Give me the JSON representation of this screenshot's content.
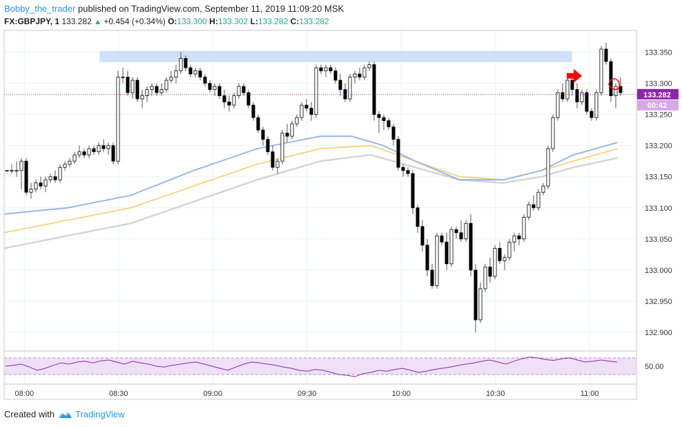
{
  "header": {
    "author": "Bobby_the_trader",
    "published_text": "published on TradingView.com, September 11, 2019 11:09:20 MSK",
    "symbol": "FX:GBPJPY, 1",
    "last": "133.282",
    "change": "+0.454 (+0.34%)",
    "open_label": "O:",
    "open": "133.300",
    "high_label": "H:",
    "high": "133.302",
    "low_label": "L:",
    "low": "133.282",
    "close_label": "C:",
    "close": "133.282"
  },
  "footer": {
    "created_with": "Created with",
    "brand": "TradingView"
  },
  "colors": {
    "candle": "#000000",
    "wick": "#555555",
    "resistance_zone": "#cfe0f7",
    "ma_fast": "#8fb3e6",
    "ma_mid": "#f2d47a",
    "ma_slow": "#d4d4d4",
    "price_line": "#8e24aa",
    "rsi": "#8e24aa",
    "rsi_band": "#efe0f7",
    "annotation": "#ff0000",
    "grid": "#eef0f2"
  },
  "chart_data": {
    "type": "candlestick",
    "price_axis": {
      "ylim": [
        132.87,
        133.385
      ],
      "ticks": [
        "133.350",
        "133.300",
        "133.250",
        "133.200",
        "133.150",
        "133.100",
        "133.050",
        "133.000",
        "132.950",
        "132.900"
      ]
    },
    "time_axis": {
      "ticks": [
        "08:00",
        "08:30",
        "09:00",
        "09:30",
        "10:00",
        "10:30",
        "11:00"
      ]
    },
    "current_price_label": "133.282",
    "countdown_label": "00:42",
    "resistance_zone": {
      "low": 133.334,
      "high": 133.352
    },
    "candles": [
      [
        133.16,
        133.16,
        133.16,
        133.16
      ],
      [
        133.16,
        133.17,
        133.155,
        133.16
      ],
      [
        133.16,
        133.175,
        133.15,
        133.16
      ],
      [
        133.16,
        133.18,
        133.13,
        133.175
      ],
      [
        133.175,
        133.18,
        133.12,
        133.125
      ],
      [
        133.125,
        133.14,
        133.115,
        133.13
      ],
      [
        133.13,
        133.145,
        133.125,
        133.14
      ],
      [
        133.14,
        133.15,
        133.13,
        133.135
      ],
      [
        133.135,
        133.15,
        133.125,
        133.145
      ],
      [
        133.145,
        133.155,
        133.14,
        133.15
      ],
      [
        133.15,
        133.16,
        133.14,
        133.145
      ],
      [
        133.145,
        133.17,
        133.14,
        133.165
      ],
      [
        133.165,
        133.175,
        133.16,
        133.17
      ],
      [
        133.17,
        133.18,
        133.165,
        133.175
      ],
      [
        133.175,
        133.19,
        133.17,
        133.185
      ],
      [
        133.185,
        133.2,
        133.18,
        133.19
      ],
      [
        133.19,
        133.195,
        133.18,
        133.185
      ],
      [
        133.185,
        133.2,
        133.18,
        133.195
      ],
      [
        133.195,
        133.2,
        133.185,
        133.19
      ],
      [
        133.19,
        133.205,
        133.185,
        133.2
      ],
      [
        133.2,
        133.21,
        133.19,
        133.195
      ],
      [
        133.195,
        133.205,
        133.185,
        133.2
      ],
      [
        133.2,
        133.205,
        133.17,
        133.175
      ],
      [
        133.175,
        133.32,
        133.17,
        133.31
      ],
      [
        133.31,
        133.325,
        133.3,
        133.31
      ],
      [
        133.31,
        133.32,
        133.28,
        133.285
      ],
      [
        133.285,
        133.31,
        133.275,
        133.305
      ],
      [
        133.305,
        133.31,
        133.27,
        133.275
      ],
      [
        133.275,
        133.29,
        133.26,
        133.28
      ],
      [
        133.28,
        133.295,
        133.27,
        133.29
      ],
      [
        133.29,
        133.3,
        133.28,
        133.295
      ],
      [
        133.295,
        133.3,
        133.28,
        133.285
      ],
      [
        133.285,
        133.3,
        133.28,
        133.29
      ],
      [
        133.29,
        133.31,
        133.285,
        133.305
      ],
      [
        133.305,
        133.32,
        133.3,
        133.31
      ],
      [
        133.31,
        133.33,
        133.3,
        133.32
      ],
      [
        133.32,
        133.35,
        133.315,
        133.34
      ],
      [
        133.34,
        133.345,
        133.32,
        133.325
      ],
      [
        133.325,
        133.33,
        133.31,
        133.315
      ],
      [
        133.315,
        133.325,
        133.31,
        133.32
      ],
      [
        133.32,
        133.325,
        133.305,
        133.31
      ],
      [
        133.31,
        133.315,
        133.295,
        133.3
      ],
      [
        133.3,
        133.305,
        133.285,
        133.29
      ],
      [
        133.29,
        133.3,
        133.28,
        133.295
      ],
      [
        133.295,
        133.3,
        133.275,
        133.28
      ],
      [
        133.28,
        133.29,
        133.26,
        133.27
      ],
      [
        133.27,
        133.28,
        133.255,
        133.265
      ],
      [
        133.265,
        133.285,
        133.26,
        133.28
      ],
      [
        133.28,
        133.3,
        133.275,
        133.295
      ],
      [
        133.295,
        133.3,
        133.28,
        133.285
      ],
      [
        133.285,
        133.29,
        133.26,
        133.265
      ],
      [
        133.265,
        133.27,
        133.24,
        133.245
      ],
      [
        133.245,
        133.25,
        133.22,
        133.225
      ],
      [
        133.225,
        133.23,
        133.2,
        133.21
      ],
      [
        133.21,
        133.215,
        133.185,
        133.19
      ],
      [
        133.19,
        133.2,
        133.16,
        133.165
      ],
      [
        133.165,
        133.18,
        133.155,
        133.175
      ],
      [
        133.175,
        133.225,
        133.17,
        133.22
      ],
      [
        133.22,
        133.235,
        133.205,
        133.215
      ],
      [
        133.215,
        133.24,
        133.21,
        133.235
      ],
      [
        133.235,
        133.25,
        133.23,
        133.245
      ],
      [
        133.245,
        133.27,
        133.24,
        133.265
      ],
      [
        133.265,
        133.275,
        133.255,
        133.26
      ],
      [
        133.26,
        133.27,
        133.24,
        133.25
      ],
      [
        133.25,
        133.33,
        133.245,
        133.325
      ],
      [
        133.325,
        133.33,
        133.315,
        133.32
      ],
      [
        133.32,
        133.33,
        133.31,
        133.325
      ],
      [
        133.325,
        133.33,
        133.315,
        133.32
      ],
      [
        133.32,
        133.325,
        133.3,
        133.305
      ],
      [
        133.305,
        133.315,
        133.28,
        133.29
      ],
      [
        133.29,
        133.3,
        133.27,
        133.275
      ],
      [
        133.275,
        133.315,
        133.27,
        133.31
      ],
      [
        133.31,
        133.32,
        133.3,
        133.315
      ],
      [
        133.315,
        133.325,
        133.305,
        133.31
      ],
      [
        133.31,
        133.33,
        133.305,
        133.325
      ],
      [
        133.325,
        133.335,
        133.32,
        133.33
      ],
      [
        133.33,
        133.335,
        133.24,
        133.25
      ],
      [
        133.25,
        133.255,
        133.22,
        133.245
      ],
      [
        133.245,
        133.25,
        133.225,
        133.24
      ],
      [
        133.24,
        133.245,
        133.225,
        133.23
      ],
      [
        133.23,
        133.235,
        133.2,
        133.21
      ],
      [
        133.21,
        133.215,
        133.16,
        133.165
      ],
      [
        133.165,
        133.17,
        133.15,
        133.16
      ],
      [
        133.16,
        133.165,
        133.15,
        133.155
      ],
      [
        133.155,
        133.16,
        133.09,
        133.1
      ],
      [
        133.1,
        133.105,
        133.06,
        133.07
      ],
      [
        133.07,
        133.08,
        133.03,
        133.04
      ],
      [
        133.04,
        133.05,
        132.99,
        133.0
      ],
      [
        133.0,
        133.01,
        132.97,
        132.975
      ],
      [
        132.975,
        133.06,
        132.97,
        133.055
      ],
      [
        133.055,
        133.06,
        133.04,
        133.045
      ],
      [
        133.045,
        133.06,
        133.0,
        133.01
      ],
      [
        133.01,
        133.07,
        133.005,
        133.065
      ],
      [
        133.065,
        133.07,
        133.05,
        133.06
      ],
      [
        133.06,
        133.08,
        133.045,
        133.05
      ],
      [
        133.05,
        133.08,
        133.045,
        133.075
      ],
      [
        133.075,
        133.09,
        132.99,
        133.0
      ],
      [
        133.0,
        133.01,
        132.9,
        132.92
      ],
      [
        132.92,
        132.98,
        132.915,
        132.97
      ],
      [
        132.97,
        133.01,
        132.965,
        133.005
      ],
      [
        133.005,
        133.02,
        132.98,
        132.99
      ],
      [
        132.99,
        133.04,
        132.985,
        133.035
      ],
      [
        133.035,
        133.045,
        133.01,
        133.015
      ],
      [
        133.015,
        133.025,
        133.0,
        133.02
      ],
      [
        133.02,
        133.05,
        133.015,
        133.045
      ],
      [
        133.045,
        133.06,
        133.03,
        133.055
      ],
      [
        133.055,
        133.06,
        133.04,
        133.05
      ],
      [
        133.05,
        133.09,
        133.045,
        133.085
      ],
      [
        133.085,
        133.11,
        133.08,
        133.105
      ],
      [
        133.105,
        133.12,
        133.095,
        133.1
      ],
      [
        133.1,
        133.13,
        133.095,
        133.125
      ],
      [
        133.125,
        133.14,
        133.12,
        133.135
      ],
      [
        133.135,
        133.2,
        133.13,
        133.195
      ],
      [
        133.195,
        133.25,
        133.19,
        133.245
      ],
      [
        133.245,
        133.29,
        133.24,
        133.285
      ],
      [
        133.285,
        133.3,
        133.27,
        133.275
      ],
      [
        133.275,
        133.31,
        133.27,
        133.305
      ],
      [
        133.305,
        133.31,
        133.28,
        133.29
      ],
      [
        133.29,
        133.3,
        133.26,
        133.27
      ],
      [
        133.27,
        133.29,
        133.265,
        133.285
      ],
      [
        133.285,
        133.29,
        133.25,
        133.255
      ],
      [
        133.255,
        133.26,
        133.24,
        133.245
      ],
      [
        133.245,
        133.29,
        133.24,
        133.285
      ],
      [
        133.285,
        133.36,
        133.28,
        133.355
      ],
      [
        133.355,
        133.365,
        133.33,
        133.335
      ],
      [
        133.335,
        133.34,
        133.27,
        133.28
      ],
      [
        133.28,
        133.3,
        133.26,
        133.295
      ],
      [
        133.295,
        133.31,
        133.28,
        133.285
      ]
    ],
    "ma_fast": [
      [
        0,
        133.09
      ],
      [
        0.1,
        133.1
      ],
      [
        0.2,
        133.12
      ],
      [
        0.3,
        133.16
      ],
      [
        0.4,
        133.195
      ],
      [
        0.5,
        133.215
      ],
      [
        0.55,
        133.215
      ],
      [
        0.6,
        133.2
      ],
      [
        0.65,
        133.175
      ],
      [
        0.72,
        133.145
      ],
      [
        0.79,
        133.145
      ],
      [
        0.85,
        133.16
      ],
      [
        0.9,
        133.185
      ],
      [
        0.97,
        133.205
      ]
    ],
    "ma_mid": [
      [
        0,
        133.06
      ],
      [
        0.1,
        133.08
      ],
      [
        0.2,
        133.1
      ],
      [
        0.3,
        133.135
      ],
      [
        0.4,
        133.17
      ],
      [
        0.5,
        133.195
      ],
      [
        0.58,
        133.2
      ],
      [
        0.65,
        133.175
      ],
      [
        0.72,
        133.15
      ],
      [
        0.79,
        133.145
      ],
      [
        0.85,
        133.16
      ],
      [
        0.9,
        133.175
      ],
      [
        0.97,
        133.195
      ]
    ],
    "ma_slow": [
      [
        0,
        133.035
      ],
      [
        0.1,
        133.055
      ],
      [
        0.2,
        133.075
      ],
      [
        0.3,
        133.11
      ],
      [
        0.4,
        133.145
      ],
      [
        0.5,
        133.175
      ],
      [
        0.58,
        133.185
      ],
      [
        0.65,
        133.165
      ],
      [
        0.72,
        133.145
      ],
      [
        0.79,
        133.14
      ],
      [
        0.85,
        133.15
      ],
      [
        0.9,
        133.165
      ],
      [
        0.97,
        133.18
      ]
    ],
    "rsi": {
      "ylim": [
        20,
        80
      ],
      "tick_label": "50.00",
      "upper_band": 70,
      "lower_band": 30,
      "values": [
        50,
        52,
        55,
        48,
        40,
        45,
        52,
        58,
        55,
        60,
        62,
        58,
        63,
        65,
        60,
        55,
        62,
        58,
        55,
        50,
        48,
        52,
        55,
        58,
        60,
        55,
        50,
        45,
        40,
        48,
        55,
        60,
        58,
        55,
        52,
        48,
        45,
        40,
        38,
        42,
        40,
        35,
        30,
        28,
        25,
        32,
        35,
        40,
        38,
        42,
        45,
        40,
        35,
        38,
        42,
        45,
        48,
        52,
        55,
        58,
        62,
        65,
        60,
        55,
        62,
        68,
        72,
        70,
        66,
        64,
        68,
        70,
        65,
        60,
        62,
        65,
        62,
        60
      ]
    }
  }
}
